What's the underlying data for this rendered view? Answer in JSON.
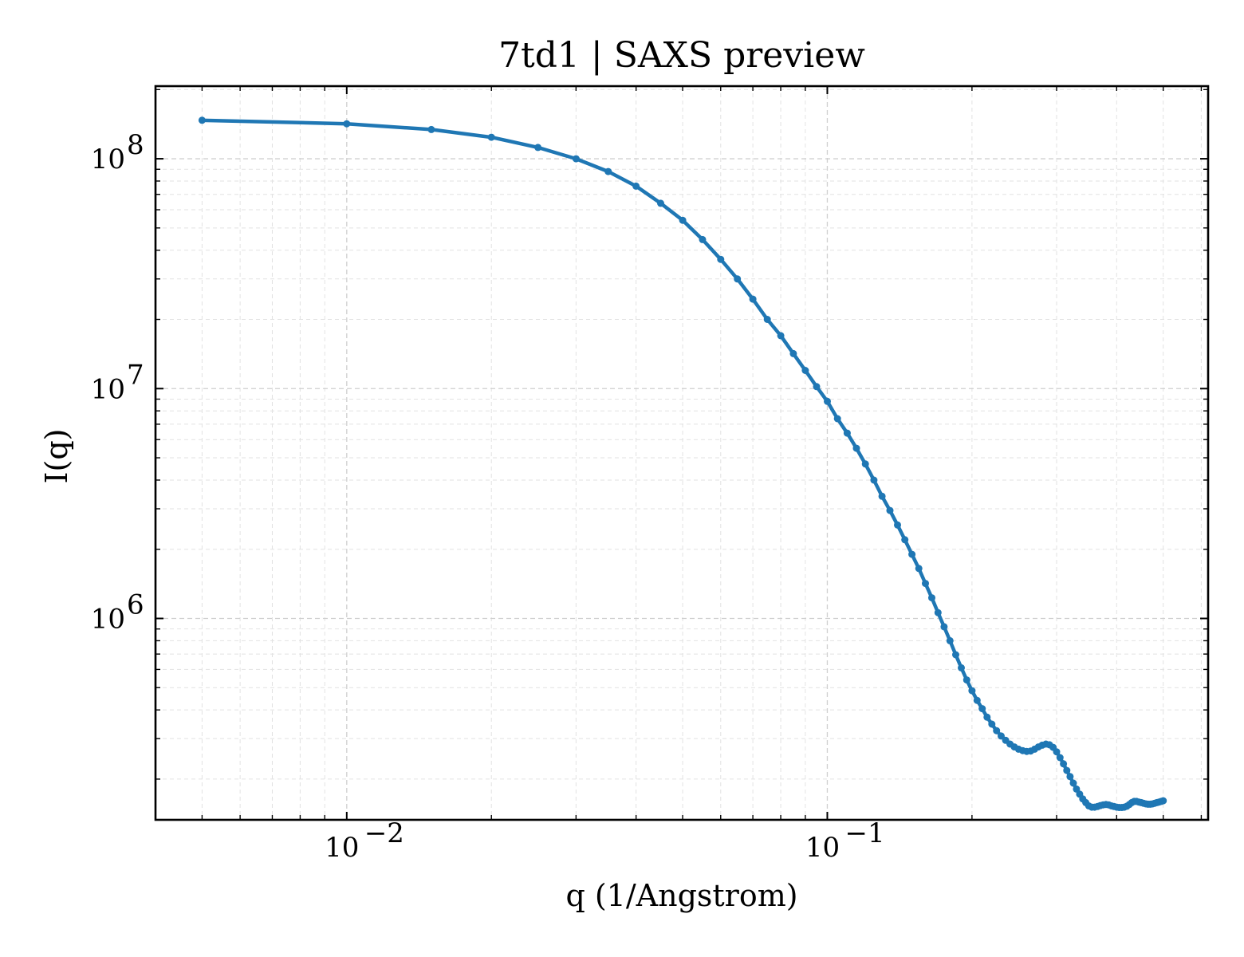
{
  "chart_data": {
    "type": "line",
    "title": "7td1 | SAXS preview",
    "xlabel": "q (1/Angstrom)",
    "ylabel": "I(q)",
    "xscale": "log",
    "yscale": "log",
    "xlim": [
      0.004,
      0.62
    ],
    "ylim": [
      133000,
      207000000
    ],
    "xticks": [
      {
        "value": 0.01,
        "base": "10",
        "exp": "−2"
      },
      {
        "value": 0.1,
        "base": "10",
        "exp": "−1"
      }
    ],
    "yticks": [
      {
        "value": 1000000,
        "base": "10",
        "exp": "6"
      },
      {
        "value": 10000000,
        "base": "10",
        "exp": "7"
      },
      {
        "value": 100000000,
        "base": "10",
        "exp": "8"
      }
    ],
    "grid": true,
    "colors": {
      "series": "#1f77b4"
    },
    "series": [
      {
        "x": [
          0.005,
          0.01,
          0.015,
          0.02,
          0.025,
          0.03,
          0.035,
          0.04,
          0.045,
          0.05,
          0.055,
          0.06,
          0.065,
          0.07,
          0.075,
          0.08,
          0.085,
          0.09,
          0.095,
          0.1,
          0.105,
          0.11,
          0.115,
          0.12,
          0.125,
          0.13,
          0.135,
          0.14,
          0.145,
          0.15,
          0.155,
          0.16,
          0.165,
          0.17,
          0.175,
          0.18,
          0.185,
          0.19,
          0.195,
          0.2,
          0.205,
          0.21,
          0.215,
          0.22,
          0.225,
          0.23,
          0.235,
          0.24,
          0.245,
          0.25,
          0.255,
          0.26,
          0.265,
          0.27,
          0.275,
          0.28,
          0.285,
          0.29,
          0.295,
          0.3,
          0.305,
          0.31,
          0.315,
          0.32,
          0.325,
          0.33,
          0.335,
          0.34,
          0.345,
          0.35,
          0.355,
          0.36,
          0.365,
          0.37,
          0.375,
          0.38,
          0.385,
          0.39,
          0.395,
          0.4,
          0.405,
          0.41,
          0.415,
          0.42,
          0.425,
          0.43,
          0.435,
          0.44,
          0.445,
          0.45,
          0.455,
          0.46,
          0.465,
          0.47,
          0.475,
          0.48,
          0.485,
          0.49,
          0.495,
          0.5
        ],
        "y": [
          147000000,
          142000000,
          134000000,
          124000000,
          112000000,
          100000000,
          88000000,
          76000000,
          64000000,
          54000000,
          44500000,
          36500000,
          30000000,
          24500000,
          20000000,
          17000000,
          14200000,
          12000000,
          10200000,
          8800000,
          7400000,
          6400000,
          5500000,
          4700000,
          4000000,
          3400000,
          2950000,
          2550000,
          2200000,
          1900000,
          1650000,
          1420000,
          1230000,
          1060000,
          920000,
          800000,
          695000,
          610000,
          540000,
          485000,
          440000,
          405000,
          372000,
          347000,
          325000,
          308000,
          295000,
          284000,
          276000,
          270000,
          266000,
          264000,
          265000,
          270000,
          276000,
          281000,
          284000,
          282000,
          275000,
          263000,
          248000,
          233000,
          218000,
          205000,
          192000,
          181000,
          172000,
          164000,
          158000,
          153000,
          151000,
          151000,
          152000,
          153500,
          154500,
          155000,
          154500,
          153000,
          152000,
          151000,
          150500,
          150500,
          151000,
          152500,
          155000,
          158000,
          160000,
          160000,
          159000,
          158000,
          157000,
          156000,
          155500,
          155500,
          156000,
          157000,
          158000,
          159000,
          160000,
          161000
        ]
      }
    ]
  }
}
